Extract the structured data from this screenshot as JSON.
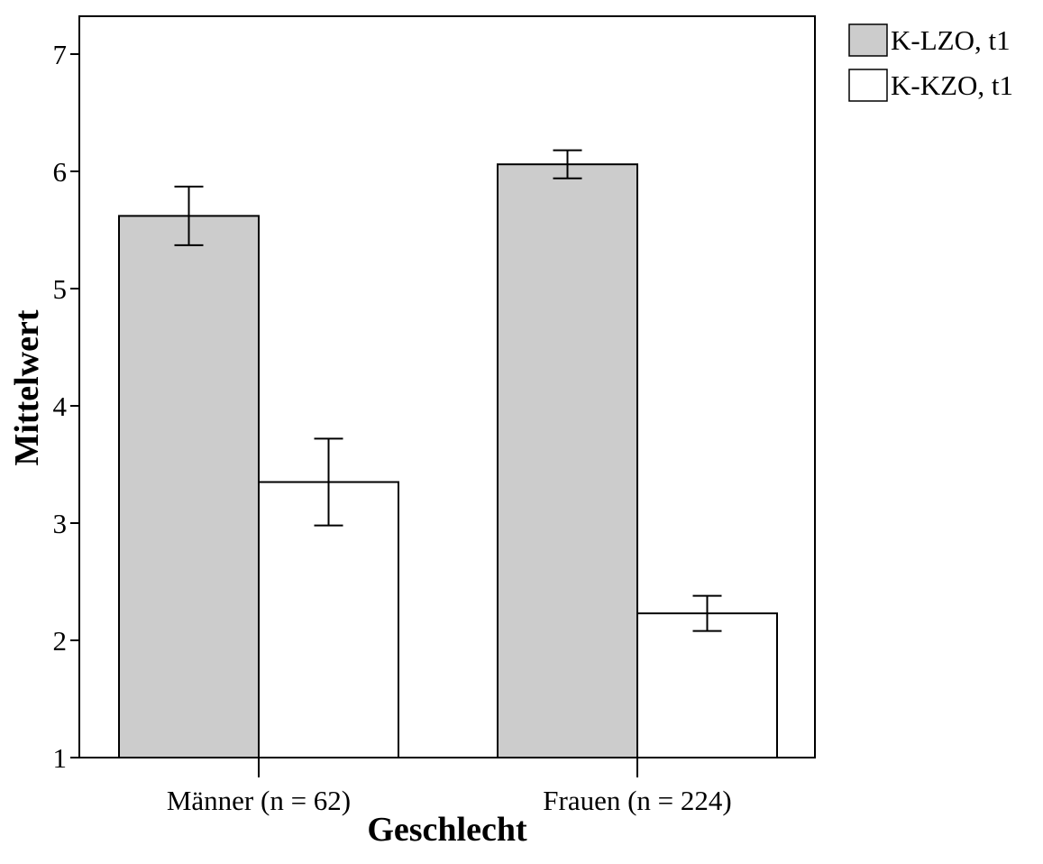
{
  "chart_data": {
    "type": "bar",
    "xlabel": "Geschlecht",
    "ylabel": "Mittelwert",
    "ylim": [
      1,
      7.3
    ],
    "yticks": [
      1,
      2,
      3,
      4,
      5,
      6,
      7
    ],
    "categories": [
      "Männer (n = 62)",
      "Frauen (n = 224)"
    ],
    "series": [
      {
        "name": "K-LZO, t1",
        "color": "#cccccc",
        "values": [
          5.62,
          6.06
        ],
        "error_low": [
          5.37,
          5.94
        ],
        "error_high": [
          5.87,
          6.18
        ]
      },
      {
        "name": "K-KZO, t1",
        "color": "#ffffff",
        "values": [
          3.35,
          2.23
        ],
        "error_low": [
          2.98,
          2.08
        ],
        "error_high": [
          3.72,
          2.38
        ]
      }
    ],
    "legend_position": "top-right, outside plot",
    "grid": false,
    "error_bars": true
  }
}
